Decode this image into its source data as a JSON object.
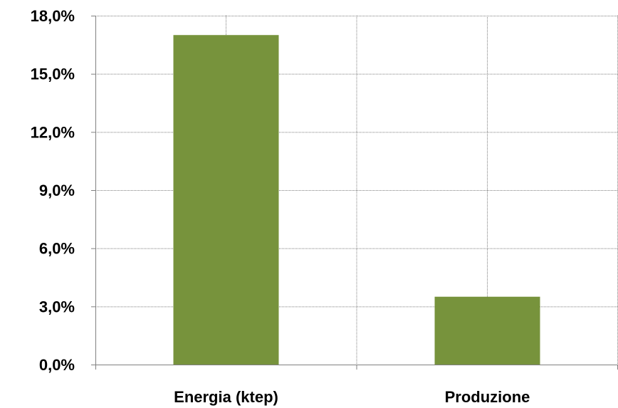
{
  "chart_data": {
    "type": "bar",
    "title": "",
    "xlabel": "",
    "ylabel": "",
    "categories": [
      "Energia (ktep)",
      "Produzione"
    ],
    "series": [
      {
        "values": [
          17.0,
          3.5
        ]
      }
    ],
    "ylim": [
      0,
      18
    ],
    "yticks": [
      0,
      3,
      6,
      9,
      12,
      15,
      18
    ],
    "ytick_labels": [
      "0,0%",
      "3,0%",
      "6,0%",
      "9,0%",
      "12,0%",
      "15,0%",
      "18,0%"
    ],
    "grid": true,
    "legend": "none",
    "colors": {
      "bar": "#77933C",
      "grid": "#7f7f7f",
      "axis": "#808080",
      "text": "#000000"
    }
  }
}
